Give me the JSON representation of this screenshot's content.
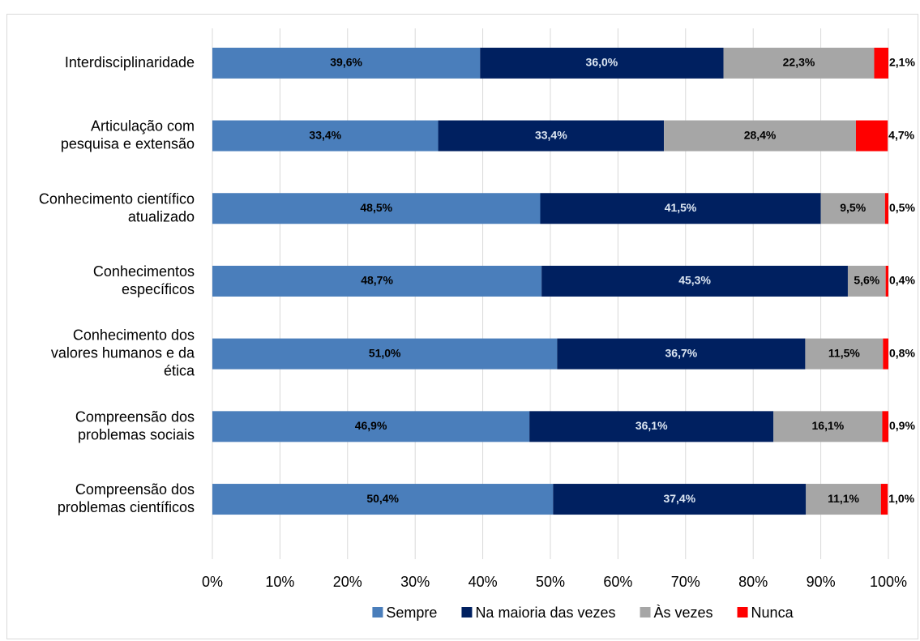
{
  "chart_data": {
    "type": "stacked-barh",
    "categories": [
      "Interdisciplinaridade",
      "Articulação com pesquisa e extensão",
      "Conhecimento científico atualizado",
      "Conhecimentos específicos",
      "Conhecimento dos valores humanos e da ética",
      "Compreensão dos problemas sociais",
      "Compreensão dos problemas científicos"
    ],
    "series": [
      {
        "name": "Sempre",
        "color": "#4a7ebb",
        "values": [
          39.6,
          33.4,
          48.5,
          48.7,
          51.0,
          46.9,
          50.4
        ],
        "value_labels": [
          "39,6%",
          "33,4%",
          "48,5%",
          "48,7%",
          "51,0%",
          "46,9%",
          "50,4%"
        ]
      },
      {
        "name": "Na maioria das vezes",
        "color": "#002060",
        "values": [
          36.0,
          33.4,
          41.5,
          45.3,
          36.7,
          36.1,
          37.4
        ],
        "value_labels": [
          "36,0%",
          "33,4%",
          "41,5%",
          "45,3%",
          "36,7%",
          "36,1%",
          "37,4%"
        ]
      },
      {
        "name": "Às vezes",
        "color": "#a6a6a6",
        "values": [
          22.3,
          28.4,
          9.5,
          5.6,
          11.5,
          16.1,
          11.1
        ],
        "value_labels": [
          "22,3%",
          "28,4%",
          "9,5%",
          "5,6%",
          "11,5%",
          "16,1%",
          "11,1%"
        ]
      },
      {
        "name": "Nunca",
        "color": "#ff0000",
        "values": [
          2.1,
          4.7,
          0.5,
          0.4,
          0.8,
          0.9,
          1.0
        ],
        "value_labels": [
          "2,1%",
          "4,7%",
          "0,5%",
          "0,4%",
          "0,8%",
          "0,9%",
          "1,0%"
        ]
      }
    ],
    "xlim": [
      0,
      100
    ],
    "xticks": [
      {
        "value": 0,
        "label": "0%"
      },
      {
        "value": 10,
        "label": "10%"
      },
      {
        "value": 20,
        "label": "20%"
      },
      {
        "value": 30,
        "label": "30%"
      },
      {
        "value": 40,
        "label": "40%"
      },
      {
        "value": 50,
        "label": "50%"
      },
      {
        "value": 60,
        "label": "60%"
      },
      {
        "value": 70,
        "label": "70%"
      },
      {
        "value": 80,
        "label": "80%"
      },
      {
        "value": 90,
        "label": "90%"
      },
      {
        "value": 100,
        "label": "100%"
      }
    ],
    "grid": true,
    "legend": "bottom"
  }
}
